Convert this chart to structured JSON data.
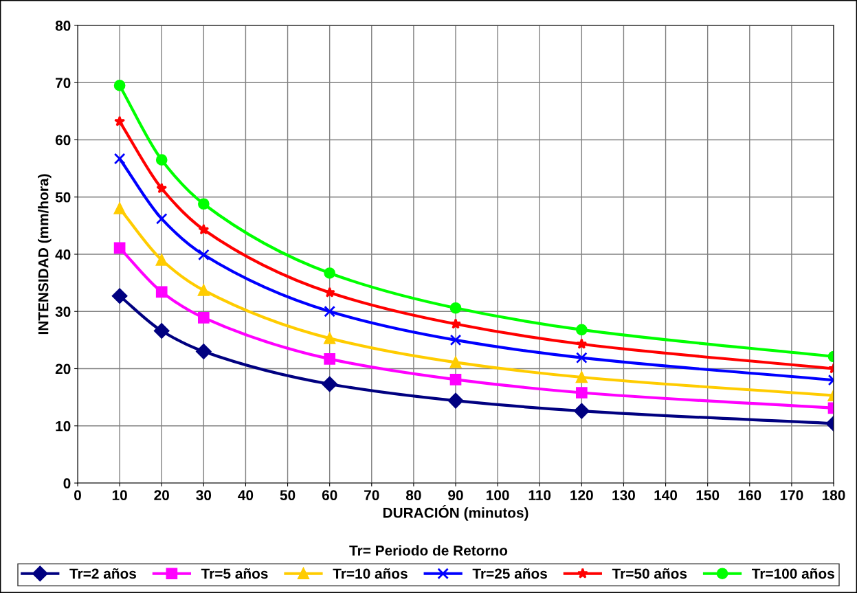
{
  "chart_data": {
    "type": "line",
    "xlabel": "DURACIÓN (minutos)",
    "ylabel": "INTENSIDAD (mm/hora)",
    "annotations": [
      "Tr= Periodo de Retorno"
    ],
    "x": [
      10,
      20,
      30,
      60,
      90,
      120,
      180
    ],
    "series": [
      {
        "name": "Tr=2 años",
        "color": "#000080",
        "marker": "diamond",
        "values": [
          32.7,
          26.6,
          23.0,
          17.3,
          14.4,
          12.6,
          10.4
        ]
      },
      {
        "name": "Tr=5 años",
        "color": "#ff00ff",
        "marker": "square",
        "values": [
          41.1,
          33.4,
          28.9,
          21.7,
          18.1,
          15.8,
          13.1
        ]
      },
      {
        "name": "Tr=10 años",
        "color": "#ffcc00",
        "marker": "triangle",
        "values": [
          48.0,
          39.0,
          33.7,
          25.3,
          21.1,
          18.5,
          15.3
        ]
      },
      {
        "name": "Tr=25 años",
        "color": "#0000ff",
        "marker": "cross",
        "values": [
          56.7,
          46.2,
          39.9,
          30.0,
          25.0,
          21.9,
          18.0
        ]
      },
      {
        "name": "Tr=50 años",
        "color": "#ff0000",
        "marker": "star",
        "values": [
          63.2,
          51.5,
          44.3,
          33.3,
          27.8,
          24.3,
          20.0
        ]
      },
      {
        "name": "Tr=100 años",
        "color": "#00ff00",
        "marker": "circle",
        "values": [
          69.5,
          56.5,
          48.8,
          36.7,
          30.6,
          26.8,
          22.1
        ]
      }
    ],
    "xlim": [
      0,
      180
    ],
    "xticks": [
      0,
      10,
      20,
      30,
      40,
      50,
      60,
      70,
      80,
      90,
      100,
      110,
      120,
      130,
      140,
      150,
      160,
      170,
      180
    ],
    "ylim": [
      0,
      80
    ],
    "yticks": [
      0,
      10,
      20,
      30,
      40,
      50,
      60,
      70,
      80
    ],
    "grid": true,
    "legend": "bottom",
    "line_style": "solid"
  }
}
